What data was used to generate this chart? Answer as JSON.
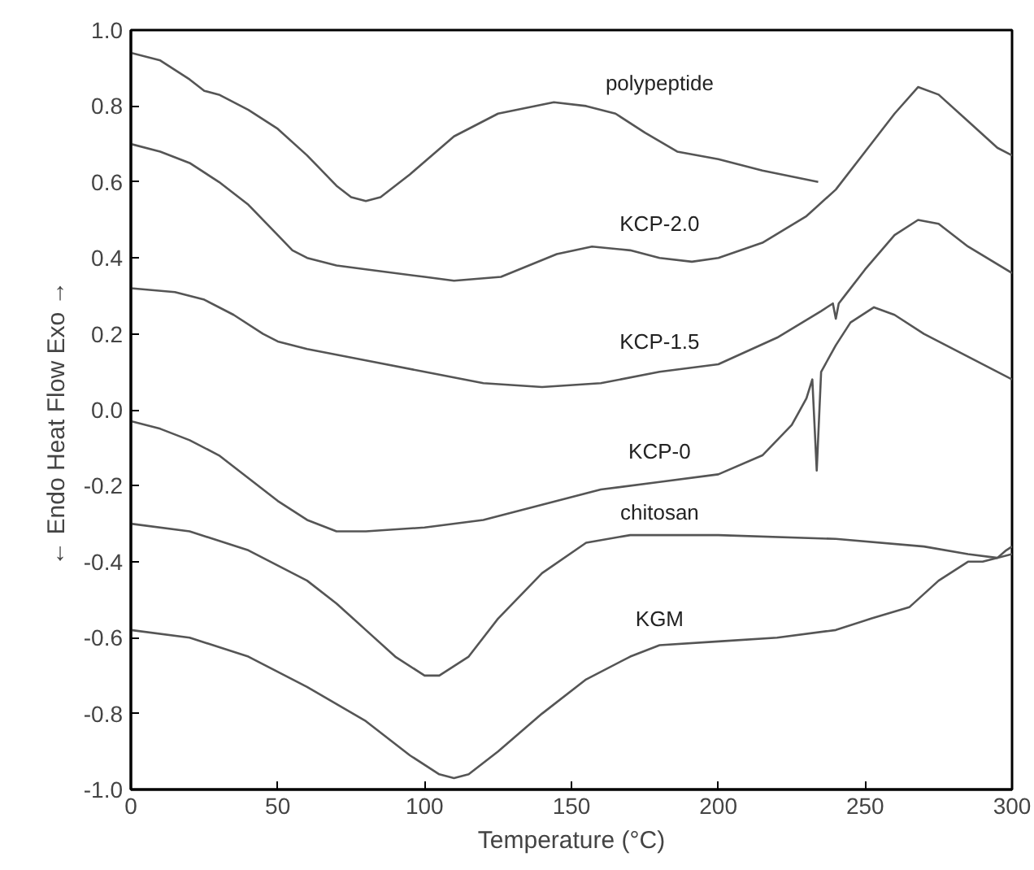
{
  "chart_data": {
    "type": "line",
    "xlabel": "Temperature (°C)",
    "ylabel": "← Endo   Heat Flow   Exo →",
    "xlim": [
      0,
      300
    ],
    "xticks": [
      0,
      50,
      100,
      150,
      200,
      250,
      300
    ],
    "ylim": [
      -1.0,
      1.0
    ],
    "yticks": [
      {
        "value": -1.0,
        "label": "-1.0"
      },
      {
        "value": -0.8,
        "label": "-0.8"
      },
      {
        "value": -0.6,
        "label": "-0.6"
      },
      {
        "value": -0.4,
        "label": "-0.4"
      },
      {
        "value": -0.2,
        "label": "-0.2"
      },
      {
        "value": 0.0,
        "label": "0.0"
      },
      {
        "value": 0.2,
        "label": "0.2"
      },
      {
        "value": 0.4,
        "label": "0.4"
      },
      {
        "value": 0.6,
        "label": "0.6"
      },
      {
        "value": 0.8,
        "label": "0.8"
      },
      {
        "value": 1.0,
        "label": "1.0"
      }
    ],
    "grid": false,
    "legend": false,
    "marker": "none",
    "line_style": "solid",
    "series": [
      {
        "name": "polypeptide",
        "color": "#555555",
        "x": [
          0,
          10,
          20,
          25,
          30,
          40,
          50,
          60,
          70,
          75,
          80,
          85,
          95,
          110,
          125,
          144,
          155,
          165,
          175,
          186,
          200,
          215,
          234
        ],
        "values": [
          0.94,
          0.92,
          0.87,
          0.84,
          0.83,
          0.79,
          0.74,
          0.67,
          0.59,
          0.56,
          0.55,
          0.56,
          0.62,
          0.72,
          0.78,
          0.81,
          0.8,
          0.78,
          0.73,
          0.68,
          0.66,
          0.63,
          0.6
        ]
      },
      {
        "name": "KCP-2.0",
        "color": "#555555",
        "x": [
          0,
          10,
          20,
          30,
          40,
          50,
          55,
          60,
          70,
          80,
          100,
          110,
          126,
          145,
          157,
          170,
          180,
          191,
          200,
          215,
          230,
          240,
          250,
          260,
          268,
          275,
          285,
          295,
          300
        ],
        "values": [
          0.7,
          0.68,
          0.65,
          0.6,
          0.54,
          0.46,
          0.42,
          0.4,
          0.38,
          0.37,
          0.35,
          0.34,
          0.35,
          0.41,
          0.43,
          0.42,
          0.4,
          0.39,
          0.4,
          0.44,
          0.51,
          0.58,
          0.68,
          0.78,
          0.85,
          0.83,
          0.76,
          0.69,
          0.67
        ]
      },
      {
        "name": "KCP-1.5",
        "color": "#555555",
        "x": [
          0,
          15,
          25,
          35,
          45,
          50,
          60,
          80,
          100,
          120,
          140,
          160,
          180,
          200,
          220,
          235,
          239,
          240,
          241,
          243,
          250,
          260,
          268,
          275,
          285,
          300
        ],
        "values": [
          0.32,
          0.31,
          0.29,
          0.25,
          0.2,
          0.18,
          0.16,
          0.13,
          0.1,
          0.07,
          0.06,
          0.07,
          0.1,
          0.12,
          0.19,
          0.26,
          0.28,
          0.24,
          0.28,
          0.3,
          0.37,
          0.46,
          0.5,
          0.49,
          0.43,
          0.36
        ]
      },
      {
        "name": "KCP-0",
        "color": "#555555",
        "x": [
          0,
          10,
          20,
          30,
          40,
          50,
          60,
          70,
          80,
          100,
          120,
          140,
          160,
          180,
          200,
          215,
          225,
          230,
          232,
          233.5,
          235,
          240,
          245,
          253,
          260,
          270,
          285,
          300
        ],
        "values": [
          -0.03,
          -0.05,
          -0.08,
          -0.12,
          -0.18,
          -0.24,
          -0.29,
          -0.32,
          -0.32,
          -0.31,
          -0.29,
          -0.25,
          -0.21,
          -0.19,
          -0.17,
          -0.12,
          -0.04,
          0.03,
          0.08,
          -0.16,
          0.1,
          0.17,
          0.23,
          0.27,
          0.25,
          0.2,
          0.14,
          0.08
        ]
      },
      {
        "name": "chitosan",
        "color": "#555555",
        "x": [
          0,
          20,
          40,
          60,
          70,
          80,
          90,
          100,
          105,
          115,
          125,
          140,
          155,
          170,
          200,
          240,
          270,
          285,
          295,
          298,
          300
        ],
        "values": [
          -0.3,
          -0.32,
          -0.37,
          -0.45,
          -0.51,
          -0.58,
          -0.65,
          -0.7,
          -0.7,
          -0.65,
          -0.55,
          -0.43,
          -0.35,
          -0.33,
          -0.33,
          -0.34,
          -0.36,
          -0.38,
          -0.39,
          -0.37,
          -0.36
        ]
      },
      {
        "name": "KGM",
        "color": "#555555",
        "x": [
          0,
          20,
          40,
          60,
          80,
          95,
          105,
          110,
          115,
          125,
          140,
          155,
          170,
          180,
          200,
          220,
          240,
          252,
          265,
          275,
          285,
          290,
          300
        ],
        "values": [
          -0.58,
          -0.6,
          -0.65,
          -0.73,
          -0.82,
          -0.91,
          -0.96,
          -0.97,
          -0.96,
          -0.9,
          -0.8,
          -0.71,
          -0.65,
          -0.62,
          -0.61,
          -0.6,
          -0.58,
          -0.55,
          -0.52,
          -0.45,
          -0.4,
          -0.4,
          -0.38
        ]
      }
    ]
  }
}
